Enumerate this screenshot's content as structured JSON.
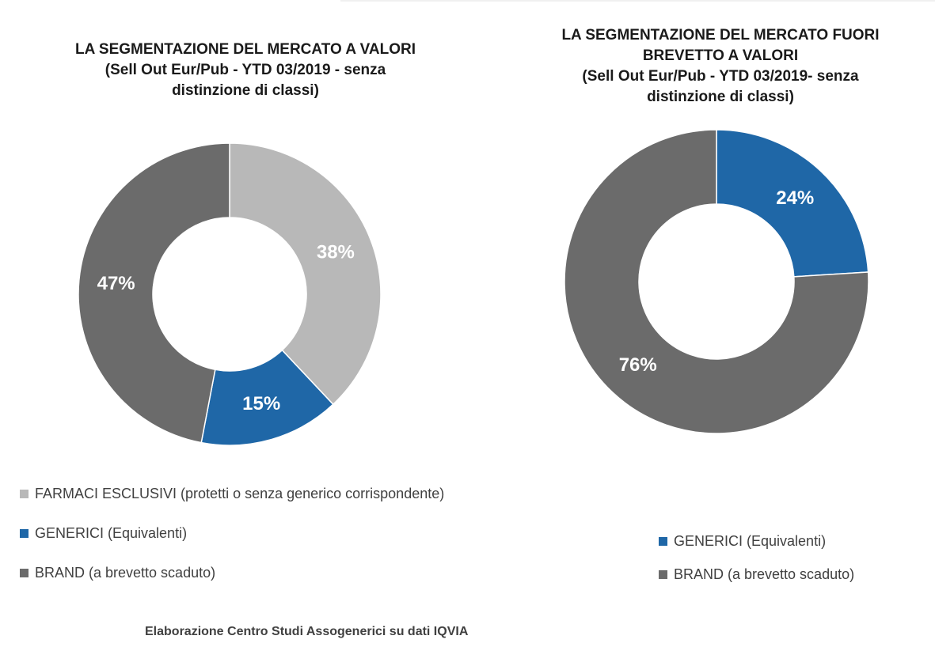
{
  "chart_data": [
    {
      "type": "pie",
      "variant": "donut",
      "title_lines": [
        "LA SEGMENTAZIONE DEL MERCATO A VALORI",
        "(Sell Out Eur/Pub - YTD 03/2019 - senza",
        "distinzione di classi)"
      ],
      "categories": [
        "FARMACI ESCLUSIVI (protetti o senza generico corrispondente)",
        "GENERICI (Equivalenti)",
        "BRAND (a brevetto scaduto)"
      ],
      "values": [
        38,
        15,
        47
      ],
      "data_labels": [
        "38%",
        "15%",
        "47%"
      ],
      "colors": [
        "#b8b8b8",
        "#1f67a7",
        "#6b6b6b"
      ],
      "legend_position": "bottom"
    },
    {
      "type": "pie",
      "variant": "donut",
      "title_lines": [
        "LA SEGMENTAZIONE DEL MERCATO FUORI",
        "BREVETTO A VALORI",
        "(Sell Out Eur/Pub - YTD 03/2019- senza",
        "distinzione di classi)"
      ],
      "categories": [
        "GENERICI (Equivalenti)",
        "BRAND (a brevetto scaduto)"
      ],
      "values": [
        24,
        76
      ],
      "data_labels": [
        "24%",
        "76%"
      ],
      "colors": [
        "#1f67a7",
        "#6b6b6b"
      ],
      "legend_position": "bottom"
    }
  ],
  "footer": "Elaborazione Centro Studi Assogenerici su dati IQVIA"
}
